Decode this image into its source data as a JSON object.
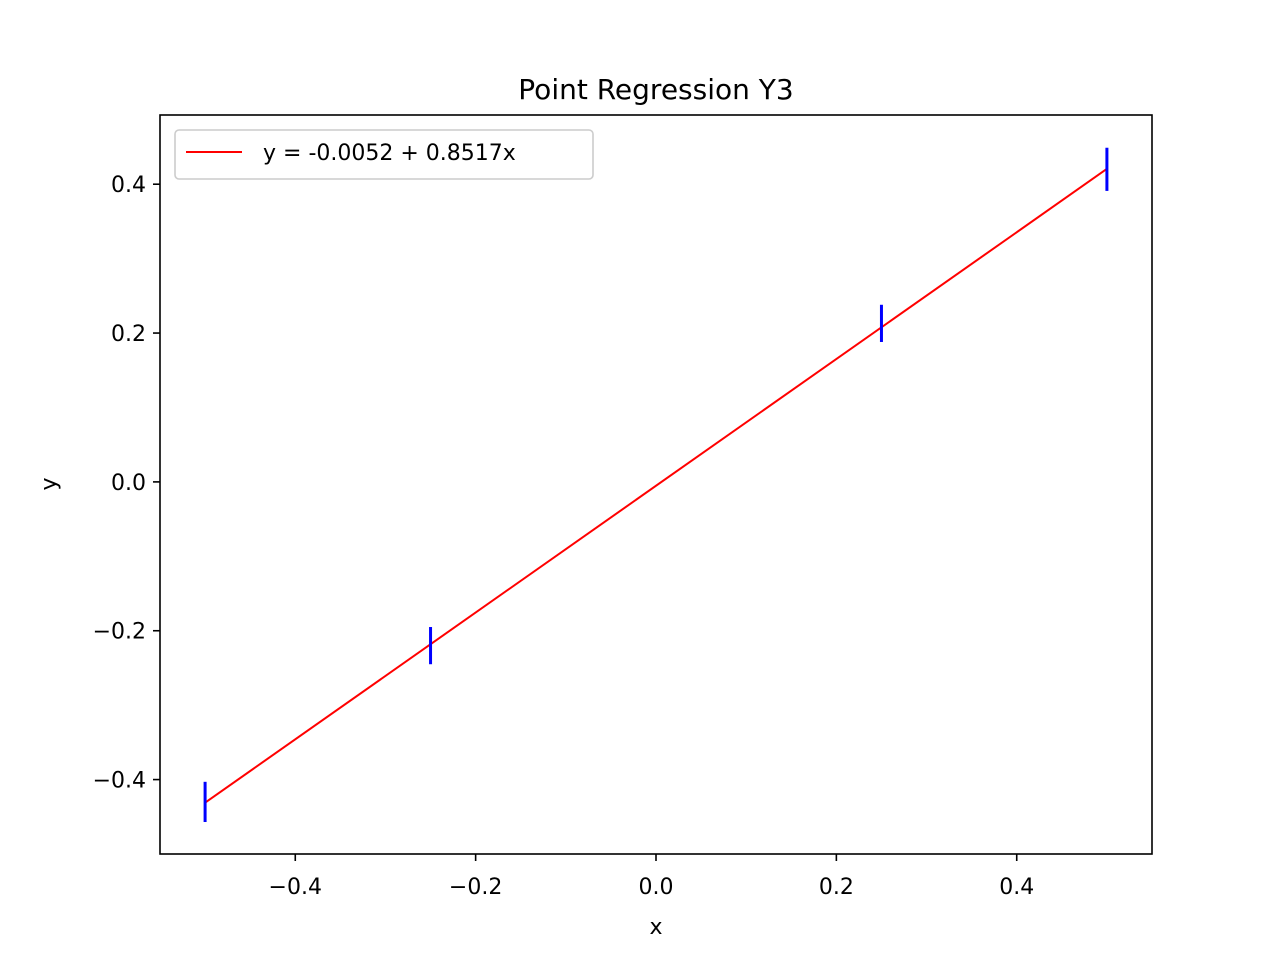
{
  "chart_data": {
    "type": "scatter",
    "title": "Point Regression Y3",
    "xlabel": "x",
    "ylabel": "y",
    "xlim": [
      -0.55,
      0.55
    ],
    "ylim": [
      -0.5,
      0.493
    ],
    "x_ticks": [
      -0.4,
      -0.2,
      0.0,
      0.2,
      0.4
    ],
    "x_tick_labels": [
      "−0.4",
      "−0.2",
      "0.0",
      "0.2",
      "0.4"
    ],
    "y_ticks": [
      -0.4,
      -0.2,
      0.0,
      0.2,
      0.4
    ],
    "y_tick_labels": [
      "−0.4",
      "−0.2",
      "0.0",
      "0.2",
      "0.4"
    ],
    "grid": false,
    "legend_position": "top-left",
    "series": [
      {
        "kind": "errorbar",
        "color": "#0000ff",
        "x": [
          -0.5,
          -0.25,
          0.25,
          0.5
        ],
        "y": [
          -0.43,
          -0.22,
          0.213,
          0.42
        ],
        "yerr": [
          0.027,
          0.025,
          0.025,
          0.029
        ]
      },
      {
        "kind": "line",
        "name": "y = -0.0052 + 0.8517x",
        "color": "#ff0000",
        "intercept": -0.0052,
        "slope": 0.8517,
        "x": [
          -0.5,
          0.5
        ]
      }
    ]
  }
}
